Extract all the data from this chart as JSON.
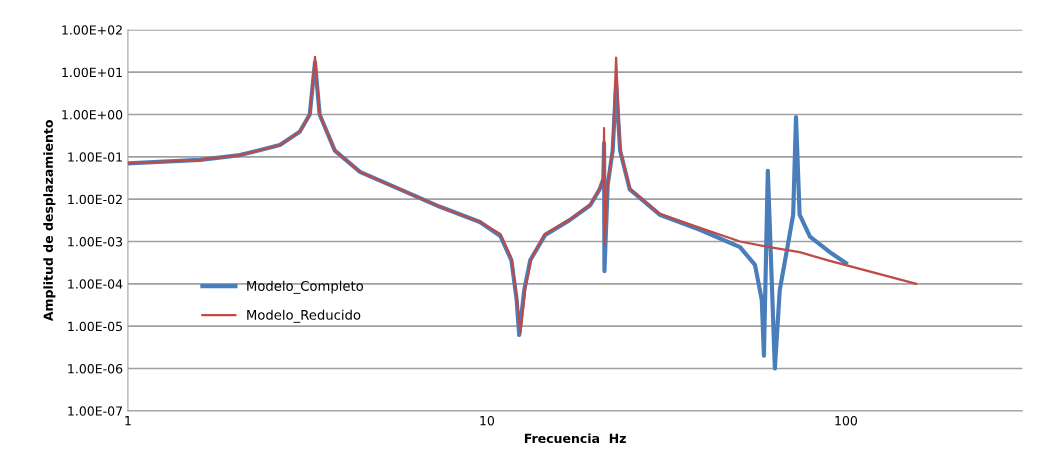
{
  "chart_data": {
    "type": "line",
    "xlabel": "Frecuencia  Hz",
    "ylabel": "Amplitud de desplazamiento",
    "log": "xy",
    "grid": "y",
    "legend": "bottom left",
    "xlim": [
      1,
      310
    ],
    "xticks": [
      1,
      10,
      100
    ],
    "ylim": [
      1e-07,
      100
    ],
    "yticks": [
      {
        "value": 1e-07,
        "label": "1.00E-07"
      },
      {
        "value": 1e-06,
        "label": "1.00E-06"
      },
      {
        "value": 1e-05,
        "label": "1.00E-05"
      },
      {
        "value": 0.0001,
        "label": "1.00E-04"
      },
      {
        "value": 0.001,
        "label": "1.00E-03"
      },
      {
        "value": 0.01,
        "label": "1.00E-02"
      },
      {
        "value": 0.1,
        "label": "1.00E-01"
      },
      {
        "value": 1,
        "label": "1.00E+00"
      },
      {
        "value": 10,
        "label": "1.00E+01"
      },
      {
        "value": 100,
        "label": "1.00E+02"
      }
    ],
    "series": [
      {
        "name": "Modelo_Completo",
        "color": "#4a7ebb",
        "x": [
          1,
          1.59,
          2.05,
          2.65,
          3.01,
          3.21,
          3.32,
          3.42,
          3.77,
          4.43,
          5.73,
          7.4,
          9.56,
          10.9,
          11.7,
          12.1,
          12.3,
          12.7,
          13.2,
          14.5,
          17.0,
          19.4,
          20.6,
          21.1,
          21.2,
          21.25,
          21.7,
          22.4,
          22.9,
          23.5,
          25.0,
          30.3,
          39.2,
          50.7,
          55.8,
          58.3,
          59.1,
          60.6,
          63.4,
          65.4,
          68.5,
          71.3,
          72.6,
          74.3,
          79.4,
          90.2,
          100
        ],
        "values": [
          0.07,
          0.085,
          0.11,
          0.19,
          0.39,
          1.0,
          17,
          1.0,
          0.14,
          0.044,
          0.017,
          0.0066,
          0.0029,
          0.00135,
          0.00036,
          4.2e-05,
          6.2e-06,
          7e-05,
          0.00036,
          0.0014,
          0.0032,
          0.0072,
          0.017,
          0.03,
          0.21,
          0.0002,
          0.022,
          0.14,
          5,
          0.14,
          0.017,
          0.0043,
          0.0019,
          0.00074,
          0.00028,
          4.2e-05,
          2e-06,
          0.047,
          1e-06,
          7e-05,
          0.00063,
          0.0043,
          0.87,
          0.0043,
          0.0013,
          0.00056,
          0.00031
        ]
      },
      {
        "name": "Modelo_Reducido",
        "color": "#be4b48",
        "x": [
          1,
          1.59,
          2.05,
          2.65,
          3.01,
          3.21,
          3.32,
          3.42,
          3.77,
          4.43,
          5.73,
          7.4,
          9.56,
          10.9,
          11.7,
          12.1,
          12.4,
          12.8,
          13.3,
          14.5,
          17.0,
          19.4,
          20.6,
          21.1,
          21.2,
          21.25,
          21.7,
          22.4,
          22.9,
          23.5,
          25.0,
          30.3,
          39.2,
          50.7,
          60.6,
          74.3,
          90.2,
          157
        ],
        "values": [
          0.07,
          0.085,
          0.11,
          0.19,
          0.39,
          1.0,
          23,
          1.0,
          0.14,
          0.044,
          0.017,
          0.0066,
          0.0029,
          0.0015,
          0.0004,
          4.8e-05,
          7e-06,
          8e-05,
          0.0004,
          0.0015,
          0.0033,
          0.0075,
          0.018,
          0.03,
          0.48,
          0.00083,
          0.023,
          0.15,
          22,
          0.15,
          0.018,
          0.0045,
          0.0021,
          0.001,
          0.00075,
          0.00056,
          0.00035,
          0.0001
        ]
      }
    ]
  }
}
